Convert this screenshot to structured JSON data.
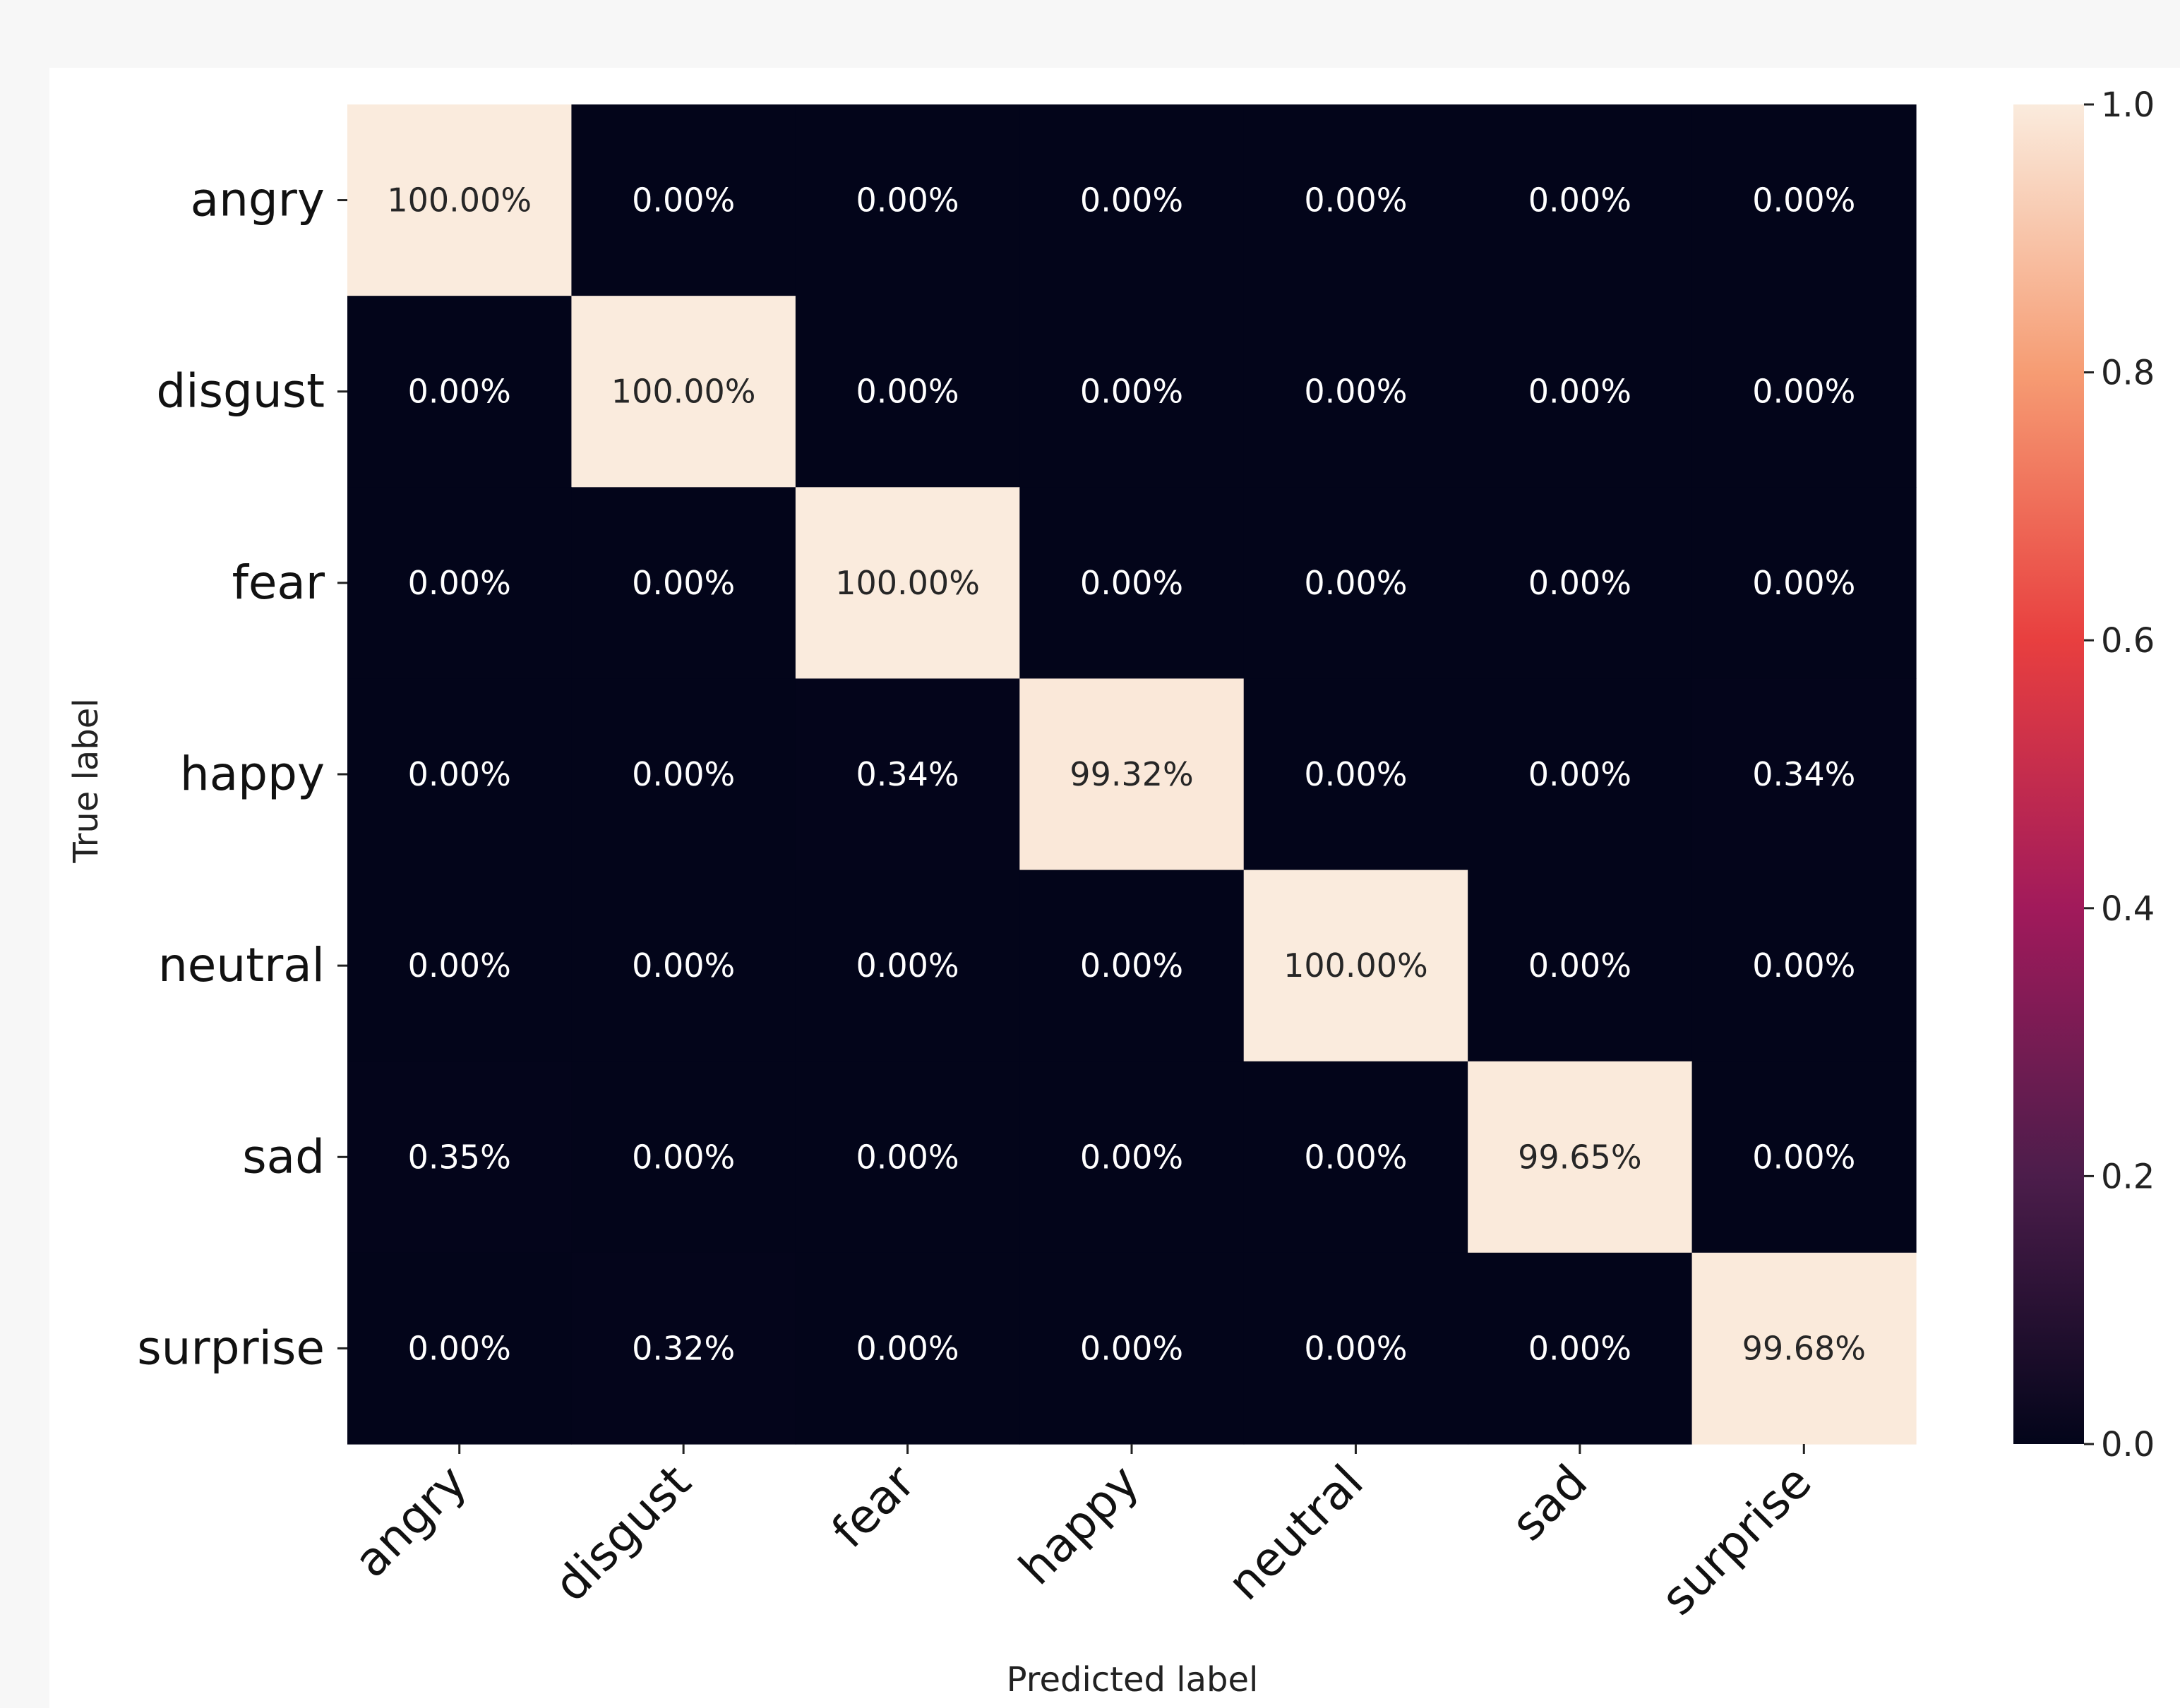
{
  "chart_data": {
    "type": "heatmap",
    "title": "",
    "xlabel": "Predicted label",
    "ylabel": "True label",
    "x_categories": [
      "angry",
      "disgust",
      "fear",
      "happy",
      "neutral",
      "sad",
      "surprise"
    ],
    "y_categories": [
      "angry",
      "disgust",
      "fear",
      "happy",
      "neutral",
      "sad",
      "surprise"
    ],
    "values": [
      [
        1.0,
        0.0,
        0.0,
        0.0,
        0.0,
        0.0,
        0.0
      ],
      [
        0.0,
        1.0,
        0.0,
        0.0,
        0.0,
        0.0,
        0.0
      ],
      [
        0.0,
        0.0,
        1.0,
        0.0,
        0.0,
        0.0,
        0.0
      ],
      [
        0.0,
        0.0,
        0.0034,
        0.9932,
        0.0,
        0.0,
        0.0034
      ],
      [
        0.0,
        0.0,
        0.0,
        0.0,
        1.0,
        0.0,
        0.0
      ],
      [
        0.0035,
        0.0,
        0.0,
        0.0,
        0.0,
        0.9965,
        0.0
      ],
      [
        0.0,
        0.0032,
        0.0,
        0.0,
        0.0,
        0.0,
        0.9968
      ]
    ],
    "cell_labels": [
      [
        "100.00%",
        "0.00%",
        "0.00%",
        "0.00%",
        "0.00%",
        "0.00%",
        "0.00%"
      ],
      [
        "0.00%",
        "100.00%",
        "0.00%",
        "0.00%",
        "0.00%",
        "0.00%",
        "0.00%"
      ],
      [
        "0.00%",
        "0.00%",
        "100.00%",
        "0.00%",
        "0.00%",
        "0.00%",
        "0.00%"
      ],
      [
        "0.00%",
        "0.00%",
        "0.34%",
        "99.32%",
        "0.00%",
        "0.00%",
        "0.34%"
      ],
      [
        "0.00%",
        "0.00%",
        "0.00%",
        "0.00%",
        "100.00%",
        "0.00%",
        "0.00%"
      ],
      [
        "0.35%",
        "0.00%",
        "0.00%",
        "0.00%",
        "0.00%",
        "99.65%",
        "0.00%"
      ],
      [
        "0.00%",
        "0.32%",
        "0.00%",
        "0.00%",
        "0.00%",
        "0.00%",
        "99.68%"
      ]
    ],
    "colorbar": {
      "min": 0.0,
      "max": 1.0,
      "ticks": [
        0.0,
        0.2,
        0.4,
        0.6,
        0.8,
        1.0
      ],
      "tick_labels": [
        "0.0",
        "0.2",
        "0.4",
        "0.6",
        "0.8",
        "1.0"
      ],
      "colormap": "rocket",
      "stops": [
        "#03051a",
        "#4c1d4b",
        "#a11a5b",
        "#e83f3f",
        "#f69c73",
        "#faebdd"
      ]
    },
    "grid": false,
    "legend": "none"
  }
}
